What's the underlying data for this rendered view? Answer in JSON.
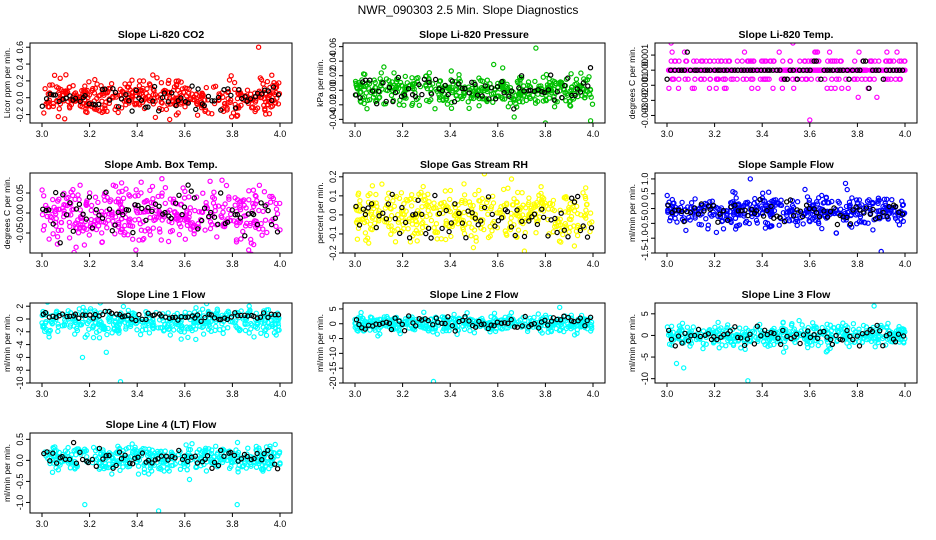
{
  "figure": {
    "title": "NWR_090303  2.5 Min. Slope Diagnostics"
  },
  "chart_data": [
    {
      "type": "scatter",
      "title": "Slope Li-820 CO2",
      "ylabel": "Licor ppm per min.",
      "xlim": [
        3.0,
        4.0
      ],
      "xticks": [
        3.0,
        3.2,
        3.4,
        3.6,
        3.8,
        4.0
      ],
      "ylim": [
        -0.3,
        0.65
      ],
      "yticks": [
        -0.2,
        0.0,
        0.2,
        0.4,
        0.6
      ],
      "color": "#ff0000",
      "center": 0.0,
      "spread": 0.1,
      "outliers": [
        {
          "x": 3.91,
          "y": 0.6
        }
      ],
      "black_series": true
    },
    {
      "type": "scatter",
      "title": "Slope Li-820 Pressure",
      "ylabel": "kPa per min.",
      "xlim": [
        3.0,
        4.0
      ],
      "xticks": [
        3.0,
        3.2,
        3.4,
        3.6,
        3.8,
        4.0
      ],
      "ylim": [
        -0.045,
        0.065
      ],
      "yticks": [
        -0.04,
        -0.02,
        0.0,
        0.02,
        0.04,
        0.06
      ],
      "color": "#00c000",
      "center": 0.0,
      "spread": 0.011,
      "outliers": [
        {
          "x": 3.8,
          "y": -0.045
        },
        {
          "x": 3.99,
          "y": -0.042
        },
        {
          "x": 3.76,
          "y": 0.058
        }
      ],
      "black_series": true
    },
    {
      "type": "scatter",
      "title": "Slope Li-820 Temp.",
      "ylabel": "degrees C per min.",
      "xlim": [
        3.0,
        4.0
      ],
      "xticks": [
        3.0,
        3.2,
        3.4,
        3.6,
        3.8,
        4.0
      ],
      "ylim": [
        -0.0035,
        0.0018
      ],
      "yticks": [
        -0.003,
        -0.002,
        -0.001,
        0.0,
        0.001
      ],
      "color": "#ff00ff",
      "center": 0.0,
      "spread": 0.0006,
      "quantum": 0.0006,
      "outliers": [
        {
          "x": 3.6,
          "y": -0.0033
        }
      ],
      "black_series": true
    },
    {
      "type": "scatter",
      "title": "Slope Amb. Box Temp.",
      "ylabel": "degrees C per min.",
      "xlim": [
        3.0,
        4.0
      ],
      "xticks": [
        3.0,
        3.2,
        3.4,
        3.6,
        3.8,
        4.0
      ],
      "ylim": [
        -0.1,
        0.1
      ],
      "yticks": [
        -0.05,
        0.0,
        0.05
      ],
      "color": "#ff00ff",
      "center": 0.0,
      "spread": 0.035,
      "outliers": [],
      "black_series": true
    },
    {
      "type": "scatter",
      "title": "Slope Gas Stream RH",
      "ylabel": "percent per min.",
      "xlim": [
        3.0,
        4.0
      ],
      "xticks": [
        3.0,
        3.2,
        3.4,
        3.6,
        3.8,
        4.0
      ],
      "ylim": [
        -0.2,
        0.22
      ],
      "yticks": [
        -0.2,
        -0.1,
        0.0,
        0.1,
        0.2
      ],
      "color": "#ffff00",
      "center": 0.0,
      "spread": 0.075,
      "outliers": [],
      "black_series": true
    },
    {
      "type": "scatter",
      "title": "Slope Sample Flow",
      "ylabel": "ml/min per min.",
      "xlim": [
        3.0,
        4.0
      ],
      "xticks": [
        3.0,
        3.2,
        3.4,
        3.6,
        3.8,
        4.0
      ],
      "ylim": [
        -1.5,
        1.2
      ],
      "yticks": [
        -1.5,
        -1.0,
        -0.5,
        0.0,
        0.5,
        1.0
      ],
      "color": "#0000ff",
      "center": -0.1,
      "spread": 0.25,
      "outliers": [
        {
          "x": 3.35,
          "y": 1.0
        },
        {
          "x": 3.75,
          "y": 0.85
        },
        {
          "x": 3.9,
          "y": -1.45
        }
      ],
      "black_series": true
    },
    {
      "type": "scatter",
      "title": "Slope Line 1 Flow",
      "ylabel": "ml/min per min.",
      "xlim": [
        3.0,
        4.0
      ],
      "xticks": [
        3.0,
        3.2,
        3.4,
        3.6,
        3.8,
        4.0
      ],
      "ylim": [
        -10,
        2.5
      ],
      "yticks": [
        -10,
        -8,
        -6,
        -4,
        -2,
        0,
        2
      ],
      "color": "#00ffff",
      "center": -0.5,
      "spread": 1.1,
      "outliers": [
        {
          "x": 3.33,
          "y": -9.8
        },
        {
          "x": 3.17,
          "y": -6.0
        },
        {
          "x": 3.27,
          "y": -5.2
        }
      ],
      "black_series": true,
      "black_center": 0.4,
      "black_spread": 0.3
    },
    {
      "type": "scatter",
      "title": "Slope Line 2 Flow",
      "ylabel": "ml/min per min.",
      "xlim": [
        3.0,
        4.0
      ],
      "xticks": [
        3.0,
        3.2,
        3.4,
        3.6,
        3.8,
        4.0
      ],
      "ylim": [
        -20,
        7
      ],
      "yticks": [
        -20,
        -15,
        -10,
        -5,
        0,
        5
      ],
      "color": "#00ffff",
      "center": 0.0,
      "spread": 1.4,
      "outliers": [
        {
          "x": 3.33,
          "y": -19.5
        },
        {
          "x": 3.86,
          "y": 5.5
        }
      ],
      "black_series": true
    },
    {
      "type": "scatter",
      "title": "Slope Line 3 Flow",
      "ylabel": "ml/min per min.",
      "xlim": [
        3.0,
        4.0
      ],
      "xticks": [
        3.0,
        3.2,
        3.4,
        3.6,
        3.8,
        4.0
      ],
      "ylim": [
        -11,
        7.5
      ],
      "yticks": [
        -10,
        -5,
        0,
        5
      ],
      "color": "#00ffff",
      "center": 0.0,
      "spread": 1.3,
      "outliers": [
        {
          "x": 3.34,
          "y": -10.5
        },
        {
          "x": 3.87,
          "y": 6.8
        },
        {
          "x": 3.04,
          "y": -6.5
        },
        {
          "x": 3.07,
          "y": -7.5
        }
      ],
      "black_series": true
    },
    {
      "type": "scatter",
      "title": "Slope Line 4 (LT) Flow",
      "ylabel": "ml/min per min.",
      "xlim": [
        3.0,
        4.0
      ],
      "xticks": [
        3.0,
        3.2,
        3.4,
        3.6,
        3.8,
        4.0
      ],
      "ylim": [
        -1.25,
        0.65
      ],
      "yticks": [
        -1.0,
        -0.5,
        0.0,
        0.5
      ],
      "color": "#00ffff",
      "center": 0.05,
      "spread": 0.15,
      "outliers": [
        {
          "x": 3.18,
          "y": -1.05
        },
        {
          "x": 3.49,
          "y": -1.2
        },
        {
          "x": 3.82,
          "y": -1.05
        }
      ],
      "black_series": true
    }
  ]
}
